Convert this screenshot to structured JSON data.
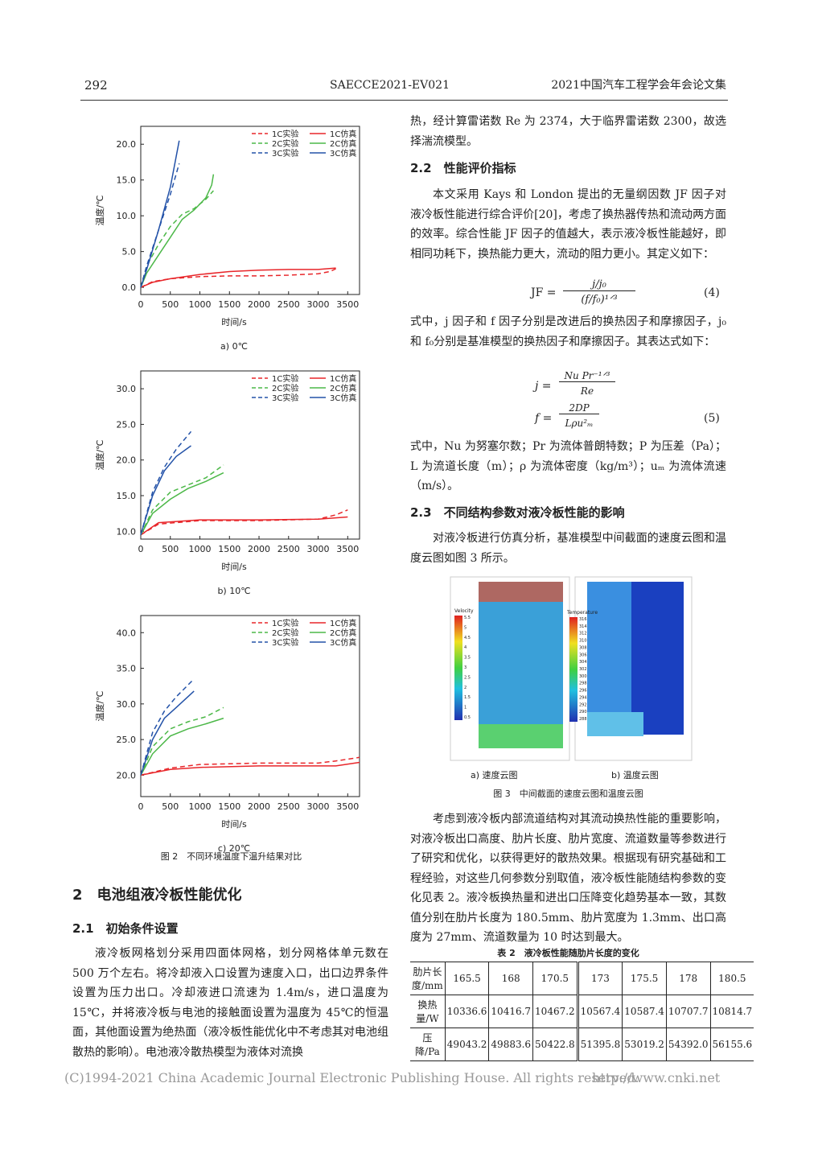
{
  "header": {
    "page_number": "292",
    "code": "SAECCE2021-EV021",
    "journal": "2021中国汽车工程学会年会论文集"
  },
  "chart_data": [
    {
      "type": "line",
      "caption": "a) 0℃",
      "x_label": "时间/s",
      "y_label": "温度/℃",
      "xlim": [
        0,
        3700
      ],
      "xticks": [
        0,
        500,
        1000,
        1500,
        2000,
        2500,
        3000,
        3500
      ],
      "ylim": [
        -1,
        22.5
      ],
      "yticks": [
        {
          "value": 0,
          "label": "0.0"
        },
        {
          "value": 5,
          "label": "5.0"
        },
        {
          "value": 10,
          "label": "10.0"
        },
        {
          "value": 15,
          "label": "15.0"
        },
        {
          "value": 20,
          "label": "20.0"
        }
      ],
      "series": [
        {
          "name": "1C实验",
          "color": "#e8262a",
          "dash": true,
          "x": [
            0,
            200,
            500,
            1000,
            1500,
            2000,
            2500,
            3000,
            3200,
            3300
          ],
          "values": [
            0,
            0.8,
            1.2,
            1.5,
            1.6,
            1.6,
            1.7,
            1.9,
            2.2,
            2.6
          ]
        },
        {
          "name": "1C仿真",
          "color": "#e8262a",
          "dash": false,
          "x": [
            0,
            200,
            500,
            1000,
            1500,
            2000,
            2500,
            3000,
            3300
          ],
          "values": [
            0,
            0.7,
            1.2,
            1.8,
            2.2,
            2.4,
            2.5,
            2.5,
            2.7
          ]
        },
        {
          "name": "2C实验",
          "color": "#4cb848",
          "dash": true,
          "x": [
            0,
            100,
            300,
            500,
            700,
            900,
            1100,
            1230
          ],
          "values": [
            0,
            3,
            6,
            8.5,
            10.2,
            11,
            12.3,
            13.5
          ]
        },
        {
          "name": "2C仿真",
          "color": "#4cb848",
          "dash": false,
          "x": [
            0,
            100,
            300,
            500,
            700,
            900,
            1100,
            1200,
            1230
          ],
          "values": [
            0,
            2,
            4.5,
            7,
            9.5,
            10.8,
            12.5,
            14.3,
            15.8
          ]
        },
        {
          "name": "3C实验",
          "color": "#2352a8",
          "dash": true,
          "x": [
            0,
            100,
            300,
            500,
            650
          ],
          "values": [
            0,
            3,
            8,
            13,
            17.3
          ]
        },
        {
          "name": "3C仿真",
          "color": "#2352a8",
          "dash": false,
          "x": [
            0,
            100,
            300,
            500,
            650
          ],
          "values": [
            0,
            2.5,
            8,
            14,
            20.5
          ]
        }
      ]
    },
    {
      "type": "line",
      "caption": "b) 10℃",
      "x_label": "时间/s",
      "y_label": "温度/℃",
      "xlim": [
        0,
        3700
      ],
      "xticks": [
        0,
        500,
        1000,
        1500,
        2000,
        2500,
        3000,
        3500
      ],
      "ylim": [
        8.9,
        32.5
      ],
      "yticks": [
        {
          "value": 10,
          "label": "10.0"
        },
        {
          "value": 15,
          "label": "15.0"
        },
        {
          "value": 20,
          "label": "20.0"
        },
        {
          "value": 25,
          "label": "25.0"
        },
        {
          "value": 30,
          "label": "30.0"
        }
      ],
      "series": [
        {
          "name": "1C实验",
          "color": "#e8262a",
          "dash": true,
          "x": [
            0,
            300,
            1000,
            2000,
            3000,
            3300,
            3500
          ],
          "values": [
            9.5,
            11,
            11.5,
            11.5,
            11.7,
            12.3,
            13
          ]
        },
        {
          "name": "1C仿真",
          "color": "#e8262a",
          "dash": false,
          "x": [
            0,
            300,
            1000,
            2000,
            3000,
            3500
          ],
          "values": [
            9.5,
            11.2,
            11.6,
            11.6,
            11.7,
            12
          ]
        },
        {
          "name": "2C实验",
          "color": "#4cb848",
          "dash": true,
          "x": [
            0,
            200,
            500,
            800,
            1100,
            1400
          ],
          "values": [
            9.5,
            13,
            15.5,
            16.5,
            17.5,
            19.3
          ]
        },
        {
          "name": "2C仿真",
          "color": "#4cb848",
          "dash": false,
          "x": [
            0,
            200,
            500,
            800,
            1100,
            1400
          ],
          "values": [
            9.5,
            12.5,
            14.5,
            16,
            17,
            18.2
          ]
        },
        {
          "name": "3C实验",
          "color": "#2352a8",
          "dash": true,
          "x": [
            0,
            200,
            400,
            600,
            850
          ],
          "values": [
            9.5,
            15.5,
            19,
            21.5,
            24
          ]
        },
        {
          "name": "3C仿真",
          "color": "#2352a8",
          "dash": false,
          "x": [
            0,
            200,
            400,
            600,
            850
          ],
          "values": [
            9.5,
            15,
            18.5,
            20.5,
            22
          ]
        }
      ]
    },
    {
      "type": "line",
      "caption": "c) 20℃",
      "x_label": "时间/s",
      "y_label": "温度/℃",
      "xlim": [
        0,
        3700
      ],
      "xticks": [
        0,
        500,
        1000,
        1500,
        2000,
        2500,
        3000,
        3500
      ],
      "ylim": [
        17,
        42.4
      ],
      "yticks": [
        {
          "value": 20,
          "label": "20.0"
        },
        {
          "value": 25,
          "label": "25.0"
        },
        {
          "value": 30,
          "label": "30.0"
        },
        {
          "value": 35,
          "label": "35.0"
        },
        {
          "value": 40,
          "label": "40.0"
        }
      ],
      "series": [
        {
          "name": "1C实验",
          "color": "#e8262a",
          "dash": true,
          "x": [
            0,
            500,
            1000,
            2000,
            3000,
            3300,
            3700
          ],
          "values": [
            20,
            21,
            21.5,
            21.7,
            21.7,
            22,
            22.5
          ]
        },
        {
          "name": "1C仿真",
          "color": "#e8262a",
          "dash": false,
          "x": [
            0,
            500,
            1000,
            2000,
            3000,
            3300,
            3700
          ],
          "values": [
            20,
            20.8,
            21.1,
            21.3,
            21.3,
            21.3,
            21.8
          ]
        },
        {
          "name": "2C实验",
          "color": "#4cb848",
          "dash": true,
          "x": [
            0,
            200,
            500,
            800,
            1100,
            1400
          ],
          "values": [
            20,
            24,
            26.5,
            27.5,
            28.2,
            29.5
          ]
        },
        {
          "name": "2C仿真",
          "color": "#4cb848",
          "dash": false,
          "x": [
            0,
            200,
            500,
            800,
            1100,
            1400
          ],
          "values": [
            20,
            23,
            25.5,
            26.5,
            27.2,
            28
          ]
        },
        {
          "name": "3C实验",
          "color": "#2352a8",
          "dash": true,
          "x": [
            0,
            200,
            400,
            600,
            900
          ],
          "values": [
            20,
            26,
            29,
            31,
            33.5
          ]
        },
        {
          "name": "3C仿真",
          "color": "#2352a8",
          "dash": false,
          "x": [
            0,
            200,
            400,
            600,
            900
          ],
          "values": [
            20,
            25,
            28,
            29.5,
            31.8
          ]
        }
      ]
    }
  ],
  "figure2_caption": "图 2　不同环境温度下温升结果对比",
  "left_column": {
    "section_heading": "2　电池组液冷板性能优化",
    "subsection_heading": "2.1　初始条件设置",
    "paragraph": "液冷板网格划分采用四面体网格，划分网格体单元数在 500 万个左右。将冷却液入口设置为速度入口，出口边界条件设置为压力出口。冷却液进口流速为 1.4m/s，进口温度为 15℃，并将液冷板与电池的接触面设置为温度为 45℃的恒温面，其他面设置为绝热面（液冷板性能优化中不考虑其对电池组散热的影响）。电池液冷散热模型为液体对流换"
  },
  "right_column": {
    "paragraph_1": "热，经计算雷诺数 Re 为 2374，大于临界雷诺数 2300，故选择湍流模型。",
    "heading_2_2": "2.2　性能评价指标",
    "paragraph_2": "本文采用 Kays 和 London 提出的无量纲因数 JF 因子对液冷板性能进行综合评价[20]，考虑了换热器传热和流动两方面的效率。综合性能 JF 因子的值越大，表示液冷板性能越好，即相同功耗下，换热能力更大，流动的阻力更小。其定义如下：",
    "equation_4": {
      "lhs": "JF =",
      "numerator": "j/j₀",
      "denominator": "(f/f₀)¹ᐟ³",
      "number": "(4)"
    },
    "paragraph_3": "式中，j 因子和 f 因子分别是改进后的换热因子和摩擦因子，j₀和 f₀分别是基准模型的换热因子和摩擦因子。其表达式如下：",
    "equation_5": {
      "j_lhs": "j =",
      "j_numerator": "Nu Pr⁻¹ᐟ³",
      "j_denominator": "Re",
      "f_lhs": "f =",
      "f_numerator": "2DP",
      "f_denominator": "Lρu²ₘ",
      "number": "(5)"
    },
    "paragraph_4": "式中，Nu 为努塞尔数；Pr 为流体普朗特数；P 为压差（Pa）；L 为流道长度（m）；ρ 为流体密度（kg/m³）；uₘ 为流体流速（m/s）。",
    "heading_2_3": "2.3　不同结构参数对液冷板性能的影响",
    "paragraph_5": "对液冷板进行仿真分析，基准模型中间截面的速度云图和温度云图如图 3 所示。",
    "paragraph_6": "考虑到液冷板内部流道结构对其流动换热性能的重要影响，对液冷板出口高度、肋片长度、肋片宽度、流道数量等参数进行了研究和优化，以获得更好的散热效果。根据现有研究基础和工程经验，对这些几何参数分别取值，液冷板性能随结构参数的变化见表 2。液冷板换热量和进出口压降变化趋势基本一致，其数值分别在肋片长度为 180.5mm、肋片宽度为 1.3mm、出口高度为 27mm、流道数量为 10 时达到最大。"
  },
  "figure3": {
    "velocity_title": "Velocity",
    "velocity_ticks": [
      "5.5",
      "5",
      "4.5",
      "4",
      "3.5",
      "3",
      "2.5",
      "2",
      "1.5",
      "1",
      "0.5"
    ],
    "temperature_title": "Temperature",
    "temperature_ticks": [
      "316",
      "314",
      "312",
      "310",
      "308",
      "306",
      "304",
      "302",
      "300",
      "298",
      "296",
      "294",
      "292",
      "290",
      "288"
    ],
    "label_a": "a) 速度云图",
    "label_b": "b) 温度云图",
    "caption": "图 3　中间截面的速度云图和温度云图"
  },
  "table2": {
    "title": "表 2　液冷板性能随肋片长度的变化",
    "rows": [
      [
        "肋片长度/mm",
        "165.5",
        "168",
        "170.5",
        "173",
        "175.5",
        "178",
        "180.5"
      ],
      [
        "换热量/W",
        "10336.6",
        "10416.7",
        "10467.2",
        "10567.4",
        "10587.4",
        "10707.7",
        "10814.7"
      ],
      [
        "压降/Pa",
        "49043.2",
        "49883.6",
        "50422.8",
        "51395.8",
        "53019.2",
        "54392.0",
        "56155.6"
      ]
    ]
  },
  "footer": {
    "copyright": "(C)1994-2021 China Academic Journal Electronic Publishing House. All rights reserved.",
    "url": "http://www.cnki.net"
  }
}
